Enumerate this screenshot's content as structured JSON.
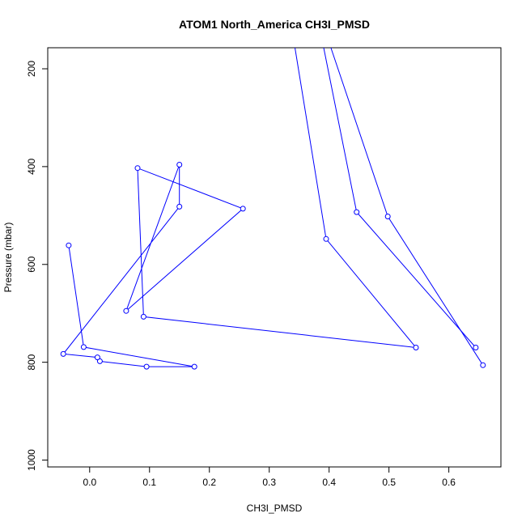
{
  "chart_data": {
    "type": "line",
    "title": "ATOM1 North_America CH3I_PMSD",
    "xlabel": "CH3I_PMSD",
    "ylabel": "Pressure (mbar)",
    "xlim": [
      -0.07,
      0.687
    ],
    "ylim": [
      1014,
      157
    ],
    "y_reversed": true,
    "grid": false,
    "line_color": "#0000ff",
    "x_ticks": [
      {
        "value": 0.0,
        "label": "0.0"
      },
      {
        "value": 0.1,
        "label": "0.1"
      },
      {
        "value": 0.2,
        "label": "0.2"
      },
      {
        "value": 0.3,
        "label": "0.3"
      },
      {
        "value": 0.4,
        "label": "0.4"
      },
      {
        "value": 0.5,
        "label": "0.5"
      },
      {
        "value": 0.6,
        "label": "0.6"
      }
    ],
    "y_ticks": [
      {
        "value": 200,
        "label": "200"
      },
      {
        "value": 400,
        "label": "400"
      },
      {
        "value": 600,
        "label": "600"
      },
      {
        "value": 800,
        "label": "800"
      },
      {
        "value": 1000,
        "label": "1000"
      }
    ],
    "segments": [
      {
        "name": "",
        "points": [
          {
            "x": 0.175,
            "y": 809
          },
          {
            "x": 0.095,
            "y": 809
          },
          {
            "x": 0.017,
            "y": 798
          },
          {
            "x": 0.013,
            "y": 790
          },
          {
            "x": -0.044,
            "y": 783
          },
          {
            "x": 0.15,
            "y": 482
          },
          {
            "x": 0.15,
            "y": 396
          },
          {
            "x": 0.061,
            "y": 695
          },
          {
            "x": 0.256,
            "y": 486
          },
          {
            "x": 0.08,
            "y": 403
          },
          {
            "x": 0.09,
            "y": 707
          },
          {
            "x": 0.545,
            "y": 770
          },
          {
            "x": 0.395,
            "y": 548
          },
          {
            "x": 0.343,
            "y": 157
          }
        ]
      },
      {
        "name": "",
        "points": [
          {
            "x": -0.035,
            "y": 561
          },
          {
            "x": -0.01,
            "y": 769
          },
          {
            "x": 0.175,
            "y": 809
          }
        ]
      },
      {
        "name": "",
        "points": [
          {
            "x": 0.391,
            "y": 157
          },
          {
            "x": 0.446,
            "y": 493
          },
          {
            "x": 0.645,
            "y": 770
          }
        ]
      },
      {
        "name": "",
        "points": [
          {
            "x": 0.403,
            "y": 157
          },
          {
            "x": 0.498,
            "y": 502
          },
          {
            "x": 0.657,
            "y": 806
          }
        ]
      }
    ]
  }
}
